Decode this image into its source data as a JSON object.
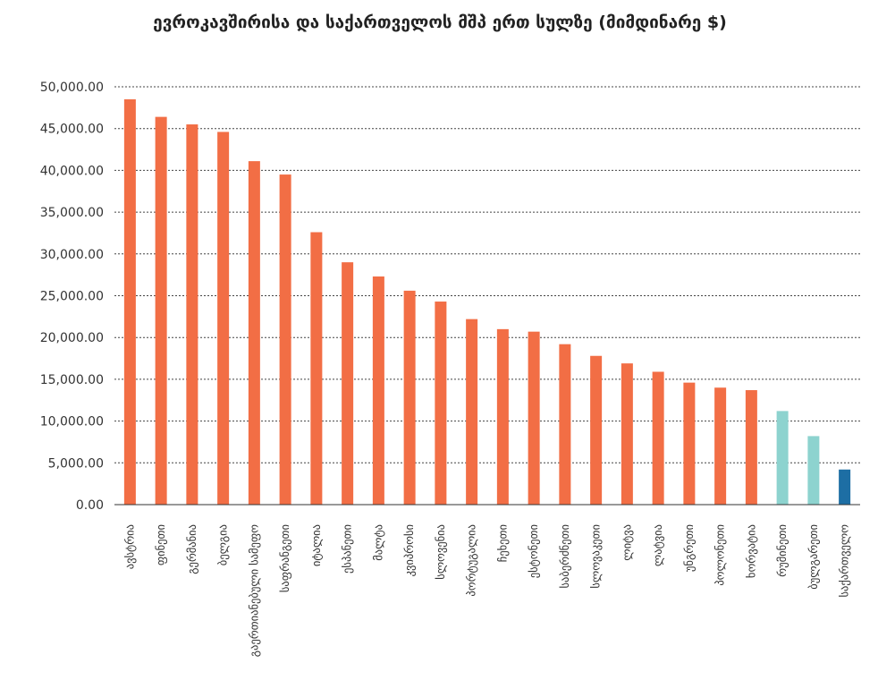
{
  "chart_data": {
    "type": "bar",
    "title": "ევროკავშირისა და საქართველოს მშპ ერთ სულზე (მიმდინარე $)",
    "categories": [
      "ავსტრია",
      "ფინეთი",
      "გერმანია",
      "ბელგია",
      "გაერთიანებული სამეფო",
      "საფრანგეთი",
      "იტალია",
      "ესპანეთი",
      "მალტა",
      "კვიპროსი",
      "სლოვენია",
      "პორტუგალია",
      "ჩეხეთი",
      "ესტონეთი",
      "საბერძნეთი",
      "სლოვაკეთი",
      "ლიტვა",
      "ლატვია",
      "უნგრეთი",
      "პოლონეთი",
      "ხორვატია",
      "რუმინეთი",
      "ბულგარეთი",
      "საქართველო"
    ],
    "values": [
      48500,
      46400,
      45500,
      44600,
      41100,
      39500,
      32600,
      29000,
      27300,
      25600,
      24300,
      22200,
      21000,
      20700,
      19200,
      17800,
      16900,
      15900,
      14600,
      14000,
      13700,
      11200,
      8200,
      4200
    ],
    "colors": [
      "#f26e45",
      "#f26e45",
      "#f26e45",
      "#f26e45",
      "#f26e45",
      "#f26e45",
      "#f26e45",
      "#f26e45",
      "#f26e45",
      "#f26e45",
      "#f26e45",
      "#f26e45",
      "#f26e45",
      "#f26e45",
      "#f26e45",
      "#f26e45",
      "#f26e45",
      "#f26e45",
      "#f26e45",
      "#f26e45",
      "#f26e45",
      "#8dd3cf",
      "#8dd3cf",
      "#1d6ea4"
    ],
    "ylim": [
      0,
      50000
    ],
    "yticks": [
      0,
      5000,
      10000,
      15000,
      20000,
      25000,
      30000,
      35000,
      40000,
      45000,
      50000
    ],
    "ytick_labels": [
      "0.00",
      "5,000.00",
      "10,000.00",
      "15,000.00",
      "20,000.00",
      "25,000.00",
      "30,000.00",
      "35,000.00",
      "40,000.00",
      "45,000.00",
      "50,000.00"
    ],
    "grid": true,
    "xlabel": "",
    "ylabel": ""
  }
}
